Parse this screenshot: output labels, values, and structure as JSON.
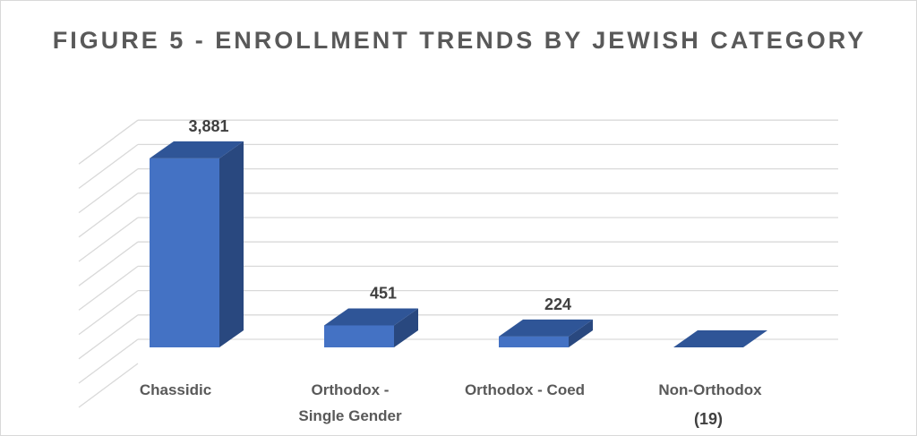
{
  "chart_data": {
    "type": "bar",
    "style": "3d-column",
    "title": "FIGURE 5 - ENROLLMENT TRENDS BY JEWISH CATEGORY",
    "categories": [
      [
        "Chassidic"
      ],
      [
        "Orthodox -",
        "Single Gender"
      ],
      [
        "Orthodox - Coed"
      ],
      [
        "Non-Orthodox"
      ]
    ],
    "values": [
      3881,
      451,
      224,
      -19
    ],
    "data_labels": [
      "3,881",
      "451",
      "224",
      "(19)"
    ],
    "xlabel": "",
    "ylabel": "",
    "ylim": [
      0,
      4500
    ],
    "grid_step": 500,
    "grid": true,
    "legend": "none",
    "colors": {
      "front": "#4472c4",
      "top": "#2f5597",
      "side": "#29487f",
      "grid": "#d9d9d9",
      "text": "#595959"
    }
  }
}
